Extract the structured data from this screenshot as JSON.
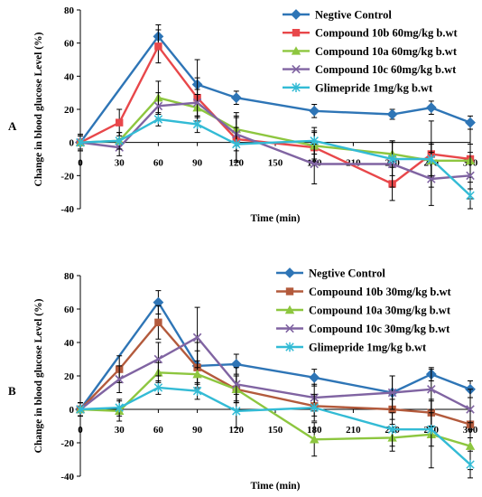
{
  "chart_data": [
    {
      "type": "line",
      "panel_label": "A",
      "xlabel": "Time (min)",
      "ylabel": "Change in blood glucose Level (%)",
      "x_ticks": [
        0,
        30,
        60,
        90,
        120,
        150,
        180,
        210,
        240,
        270,
        300
      ],
      "y_ticks": [
        -40,
        -20,
        0,
        20,
        40,
        60,
        80
      ],
      "ylim": [
        -40,
        80
      ],
      "xlim": [
        0,
        300
      ],
      "grid": false,
      "legend_position": "top-right",
      "series": [
        {
          "name": "Negtive Control",
          "color": "#2E75B6",
          "marker": "diamond",
          "x": [
            0,
            60,
            90,
            120,
            180,
            240,
            270,
            300
          ],
          "y": [
            0,
            64,
            35,
            27,
            19,
            17,
            21,
            12
          ],
          "err": [
            5,
            7,
            15,
            4,
            4,
            3,
            4,
            4
          ]
        },
        {
          "name": "Compound 10b 60mg/kg b.wt",
          "color": "#E8474A",
          "marker": "square",
          "x": [
            0,
            30,
            60,
            90,
            120,
            180,
            240,
            270,
            300
          ],
          "y": [
            0,
            12,
            58,
            27,
            2,
            -3,
            -25,
            -7,
            -10
          ],
          "err": [
            5,
            8,
            10,
            12,
            14,
            10,
            10,
            20,
            18
          ]
        },
        {
          "name": "Compound 10a 60mg/kg b.wt",
          "color": "#8DC63F",
          "marker": "triangle",
          "x": [
            0,
            30,
            60,
            90,
            120,
            180,
            240,
            270,
            300
          ],
          "y": [
            0,
            1,
            27,
            21,
            8,
            -2,
            -7,
            -11,
            -11
          ],
          "err": [
            4,
            5,
            10,
            8,
            10,
            8,
            8,
            10,
            10
          ]
        },
        {
          "name": "Compound 10c 60mg/kg b.wt",
          "color": "#8064A2",
          "marker": "x",
          "x": [
            0,
            30,
            60,
            90,
            120,
            180,
            240,
            270,
            300
          ],
          "y": [
            0,
            -3,
            22,
            24,
            5,
            -13,
            -13,
            -22,
            -20
          ],
          "err": [
            4,
            5,
            8,
            8,
            10,
            12,
            14,
            16,
            14
          ]
        },
        {
          "name": "Glimepride 1mg/kg b.wt",
          "color": "#33BBD5",
          "marker": "asterisk",
          "x": [
            0,
            30,
            60,
            90,
            120,
            180,
            240,
            270,
            300
          ],
          "y": [
            0,
            1,
            14,
            11,
            -1,
            1,
            -10,
            -10,
            -32
          ],
          "err": [
            4,
            5,
            4,
            5,
            10,
            8,
            10,
            10,
            8
          ]
        }
      ]
    },
    {
      "type": "line",
      "panel_label": "B",
      "xlabel": "Time (min)",
      "ylabel": "Change in blood glucose Level (%)",
      "x_ticks": [
        0,
        30,
        60,
        90,
        120,
        150,
        180,
        210,
        240,
        270,
        300
      ],
      "y_ticks": [
        -40,
        -20,
        0,
        20,
        40,
        60,
        80
      ],
      "ylim": [
        -40,
        80
      ],
      "xlim": [
        0,
        300
      ],
      "grid": false,
      "legend_position": "top-right",
      "series": [
        {
          "name": "Negtive Control",
          "color": "#2E75B6",
          "marker": "diamond",
          "x": [
            0,
            60,
            90,
            120,
            180,
            240,
            270,
            300
          ],
          "y": [
            0,
            64,
            26,
            27,
            19,
            10,
            21,
            12
          ],
          "err": [
            4,
            7,
            14,
            6,
            5,
            10,
            4,
            5
          ]
        },
        {
          "name": "Compound 10b 30mg/kg b.wt",
          "color": "#B35A3C",
          "marker": "square",
          "x": [
            0,
            30,
            60,
            90,
            120,
            180,
            240,
            270,
            300
          ],
          "y": [
            0,
            24,
            52,
            25,
            12,
            2,
            0,
            -2,
            -9
          ],
          "err": [
            4,
            8,
            10,
            10,
            8,
            6,
            6,
            8,
            8
          ]
        },
        {
          "name": "Compound 10a 30mg/kg b.wt",
          "color": "#8DC63F",
          "marker": "triangle",
          "x": [
            0,
            30,
            60,
            90,
            120,
            180,
            240,
            270,
            300
          ],
          "y": [
            0,
            -1,
            22,
            21,
            12,
            -18,
            -17,
            -15,
            -22
          ],
          "err": [
            4,
            6,
            6,
            8,
            8,
            10,
            8,
            20,
            14
          ]
        },
        {
          "name": "Compound 10c 30mg/kg b.wt",
          "color": "#8064A2",
          "marker": "x",
          "x": [
            0,
            30,
            60,
            90,
            120,
            180,
            240,
            270,
            300
          ],
          "y": [
            0,
            18,
            30,
            43,
            15,
            7,
            10,
            12,
            0
          ],
          "err": [
            4,
            8,
            10,
            18,
            10,
            8,
            10,
            12,
            12
          ]
        },
        {
          "name": "Glimepride 1mg/kg b.wt",
          "color": "#33BBD5",
          "marker": "asterisk",
          "x": [
            0,
            30,
            60,
            90,
            120,
            180,
            240,
            270,
            300
          ],
          "y": [
            0,
            1,
            13,
            11,
            -1,
            1,
            -12,
            -12,
            -33
          ],
          "err": [
            4,
            5,
            4,
            5,
            10,
            8,
            10,
            10,
            8
          ]
        }
      ]
    }
  ]
}
